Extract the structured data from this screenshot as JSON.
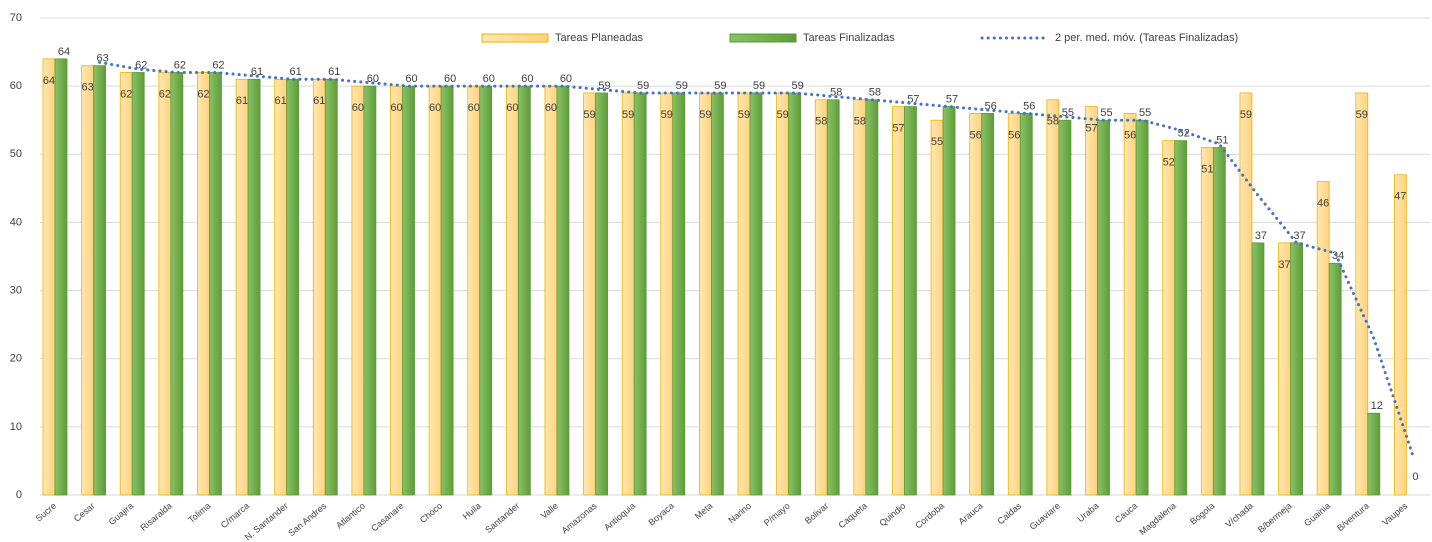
{
  "chart_data": {
    "type": "bar",
    "categories": [
      "Sucre",
      "Cesar",
      "Guajira",
      "Risaralda",
      "Tolima",
      "C/marca",
      "N. Santander",
      "San Andres",
      "Atlantico",
      "Casanare",
      "Choco",
      "Huila",
      "Santander",
      "Valle",
      "Amazonas",
      "Antioquia",
      "Boyaca",
      "Meta",
      "Narino",
      "P/mayo",
      "Bolivar",
      "Caqueta",
      "Quindio",
      "Cordoba",
      "Arauca",
      "Caldas",
      "Guaviare",
      "Uraba",
      "Cauca",
      "Magdalena",
      "Bogota",
      "V/chada",
      "B/bermeja",
      "Guainia",
      "B/ventura",
      "Vaupes"
    ],
    "series": [
      {
        "name": "Tareas Planeadas",
        "color": "#FFD27F",
        "stroke": "#F2B300",
        "values": [
          64,
          63,
          62,
          62,
          62,
          61,
          61,
          61,
          60,
          60,
          60,
          60,
          60,
          60,
          59,
          59,
          59,
          59,
          59,
          59,
          58,
          58,
          57,
          55,
          56,
          56,
          58,
          57,
          56,
          52,
          51,
          59,
          37,
          46,
          59,
          47
        ]
      },
      {
        "name": "Tareas Finalizadas",
        "color": "#70AD47",
        "stroke": "#5A9A33",
        "values": [
          64,
          63,
          62,
          62,
          62,
          61,
          61,
          61,
          60,
          60,
          60,
          60,
          60,
          60,
          59,
          59,
          59,
          59,
          59,
          59,
          58,
          58,
          57,
          57,
          56,
          56,
          55,
          55,
          55,
          52,
          51,
          37,
          37,
          34,
          12,
          0
        ]
      }
    ],
    "trendline": {
      "name": "2 per. med. móv. (Tareas Finalizadas)",
      "period": 2,
      "color": "#4472C4"
    },
    "ylim": [
      0,
      70
    ],
    "yticks": [
      0,
      10,
      20,
      30,
      40,
      50,
      60,
      70
    ],
    "grid": true,
    "legend": "top"
  }
}
